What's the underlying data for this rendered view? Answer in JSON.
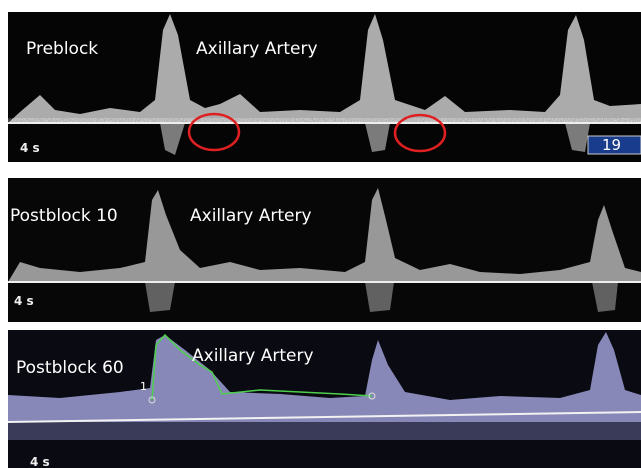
{
  "panels": [
    {
      "label": "Preblock",
      "title": "Axillary Artery",
      "scale": "4 s",
      "readout": "19"
    },
    {
      "label": "Postblock 10",
      "title": "Axillary Artery",
      "scale": "4 s"
    },
    {
      "label": "Postblock 60",
      "title": "Axillary Artery",
      "scale": "4 s",
      "marker": "1"
    }
  ]
}
